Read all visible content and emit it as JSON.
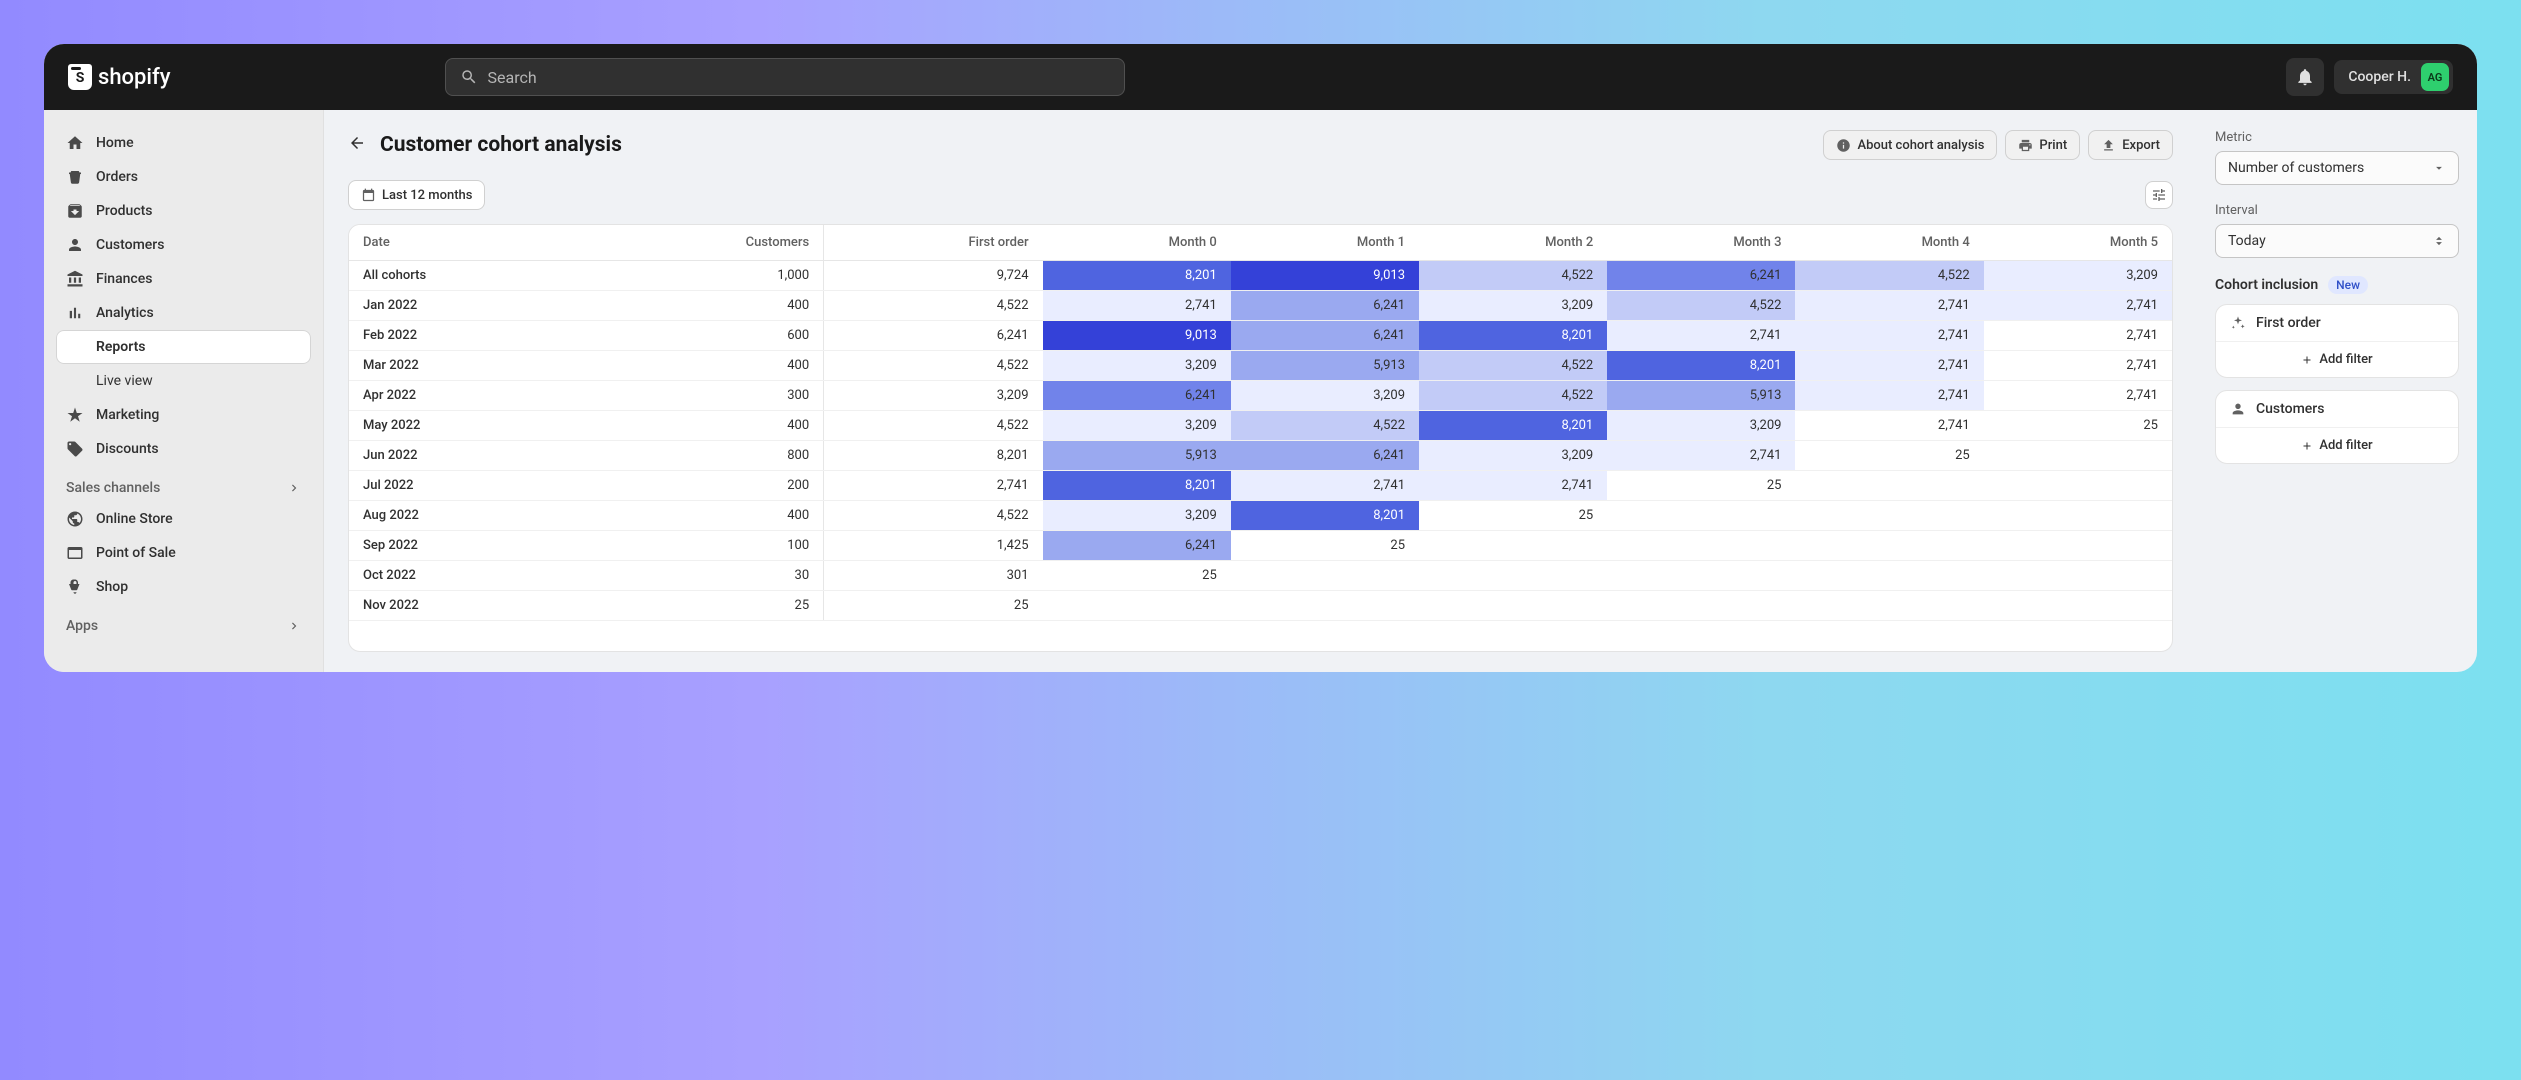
{
  "topbar": {
    "brand": "shopify",
    "search_placeholder": "Search",
    "user_name": "Cooper H.",
    "user_initials": "AG"
  },
  "sidebar": {
    "items": [
      {
        "label": "Home",
        "icon": "home"
      },
      {
        "label": "Orders",
        "icon": "orders"
      },
      {
        "label": "Products",
        "icon": "products"
      },
      {
        "label": "Customers",
        "icon": "customers"
      },
      {
        "label": "Finances",
        "icon": "finances"
      },
      {
        "label": "Analytics",
        "icon": "analytics"
      },
      {
        "label": "Reports",
        "sub": true,
        "active": true
      },
      {
        "label": "Live view",
        "sub": true
      },
      {
        "label": "Marketing",
        "icon": "marketing"
      },
      {
        "label": "Discounts",
        "icon": "discounts"
      }
    ],
    "channels_header": "Sales channels",
    "channels": [
      {
        "label": "Online Store",
        "icon": "onlinestore"
      },
      {
        "label": "Point of Sale",
        "icon": "pos"
      },
      {
        "label": "Shop",
        "icon": "shop"
      }
    ],
    "apps_header": "Apps"
  },
  "page": {
    "title": "Customer cohort analysis",
    "about_button": "About cohort analysis",
    "print_button": "Print",
    "export_button": "Export",
    "date_filter": "Last 12 months"
  },
  "right_panel": {
    "metric_label": "Metric",
    "metric_value": "Number of customers",
    "interval_label": "Interval",
    "interval_value": "Today",
    "inclusion_title": "Cohort inclusion",
    "new_badge": "New",
    "add_filter": "Add filter",
    "cards": [
      {
        "label": "First order",
        "icon": "sparkle"
      },
      {
        "label": "Customers",
        "icon": "person"
      }
    ]
  },
  "cohort_table": {
    "columns": [
      "Date",
      "Customers",
      "First order",
      "Month 0",
      "Month 1",
      "Month 2",
      "Month 3",
      "Month 4",
      "Month 5"
    ],
    "heat_colors": {
      "none": "#ffffff",
      "l1": "#e9edff",
      "l2": "#c2cbf7",
      "l3": "#9aa9f0",
      "l4": "#7183ea",
      "l5": "#4f64e0",
      "l6": "#3441d8"
    },
    "rows": [
      {
        "date": "All cohorts",
        "cust": "1,000",
        "fo": "9,724",
        "m": [
          [
            "8,201",
            "l5"
          ],
          [
            "9,013",
            "l6"
          ],
          [
            "4,522",
            "l2"
          ],
          [
            "6,241",
            "l4"
          ],
          [
            "4,522",
            "l2"
          ],
          [
            "3,209",
            "l1"
          ]
        ]
      },
      {
        "date": "Jan 2022",
        "cust": "400",
        "fo": "4,522",
        "m": [
          [
            "2,741",
            "l1"
          ],
          [
            "6,241",
            "l3"
          ],
          [
            "3,209",
            "l1"
          ],
          [
            "4,522",
            "l2"
          ],
          [
            "2,741",
            "l1"
          ],
          [
            "2,741",
            "l1"
          ]
        ]
      },
      {
        "date": "Feb 2022",
        "cust": "600",
        "fo": "6,241",
        "m": [
          [
            "9,013",
            "l6"
          ],
          [
            "6,241",
            "l3"
          ],
          [
            "8,201",
            "l5"
          ],
          [
            "2,741",
            "l1"
          ],
          [
            "2,741",
            "l1"
          ],
          [
            "2,741",
            "none"
          ]
        ]
      },
      {
        "date": "Mar 2022",
        "cust": "400",
        "fo": "4,522",
        "m": [
          [
            "3,209",
            "l1"
          ],
          [
            "5,913",
            "l3"
          ],
          [
            "4,522",
            "l2"
          ],
          [
            "8,201",
            "l5"
          ],
          [
            "2,741",
            "l1"
          ],
          [
            "2,741",
            "none"
          ]
        ]
      },
      {
        "date": "Apr 2022",
        "cust": "300",
        "fo": "3,209",
        "m": [
          [
            "6,241",
            "l4"
          ],
          [
            "3,209",
            "l1"
          ],
          [
            "4,522",
            "l2"
          ],
          [
            "5,913",
            "l3"
          ],
          [
            "2,741",
            "l1"
          ],
          [
            "2,741",
            "none"
          ]
        ]
      },
      {
        "date": "May 2022",
        "cust": "400",
        "fo": "4,522",
        "m": [
          [
            "3,209",
            "l1"
          ],
          [
            "4,522",
            "l2"
          ],
          [
            "8,201",
            "l5"
          ],
          [
            "3,209",
            "l1"
          ],
          [
            "2,741",
            "none"
          ],
          [
            "25",
            "none"
          ]
        ]
      },
      {
        "date": "Jun 2022",
        "cust": "800",
        "fo": "8,201",
        "m": [
          [
            "5,913",
            "l3"
          ],
          [
            "6,241",
            "l3"
          ],
          [
            "3,209",
            "l1"
          ],
          [
            "2,741",
            "l1"
          ],
          [
            "25",
            "none"
          ],
          [
            "",
            ""
          ]
        ]
      },
      {
        "date": "Jul 2022",
        "cust": "200",
        "fo": "2,741",
        "m": [
          [
            "8,201",
            "l5"
          ],
          [
            "2,741",
            "l1"
          ],
          [
            "2,741",
            "l1"
          ],
          [
            "25",
            "none"
          ],
          [
            "",
            ""
          ],
          [
            "",
            ""
          ]
        ]
      },
      {
        "date": "Aug 2022",
        "cust": "400",
        "fo": "4,522",
        "m": [
          [
            "3,209",
            "l1"
          ],
          [
            "8,201",
            "l5"
          ],
          [
            "25",
            "none"
          ],
          [
            "",
            ""
          ],
          [
            "",
            ""
          ],
          [
            "",
            ""
          ]
        ]
      },
      {
        "date": "Sep 2022",
        "cust": "100",
        "fo": "1,425",
        "m": [
          [
            "6,241",
            "l3"
          ],
          [
            "25",
            "none"
          ],
          [
            "",
            ""
          ],
          [
            "",
            ""
          ],
          [
            "",
            ""
          ],
          [
            "",
            ""
          ]
        ]
      },
      {
        "date": "Oct 2022",
        "cust": "30",
        "fo": "301",
        "m": [
          [
            "25",
            "none"
          ],
          [
            "",
            ""
          ],
          [
            "",
            ""
          ],
          [
            "",
            ""
          ],
          [
            "",
            ""
          ],
          [
            "",
            ""
          ]
        ]
      },
      {
        "date": "Nov 2022",
        "cust": "25",
        "fo": "25",
        "m": [
          [
            "",
            ""
          ],
          [
            "",
            ""
          ],
          [
            "",
            ""
          ],
          [
            "",
            ""
          ],
          [
            "",
            ""
          ],
          [
            "",
            ""
          ]
        ]
      }
    ]
  }
}
